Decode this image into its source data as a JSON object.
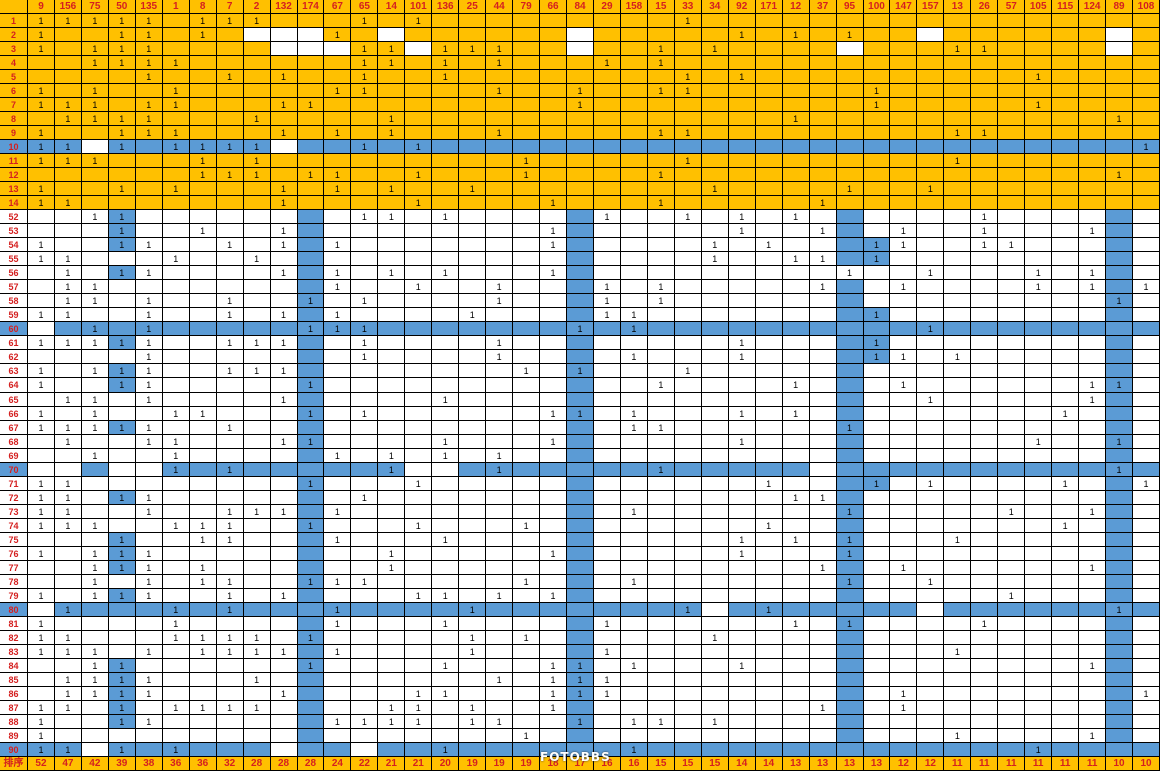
{
  "sheet": {
    "corner_label": "",
    "footer_label": "排序",
    "watermark": "FOTOBBS",
    "colors": {
      "orange": "#ffc000",
      "blue": "#5b9bd5",
      "white": "#ffffff",
      "header_text": "#d42020"
    },
    "columns": [
      "9",
      "156",
      "75",
      "50",
      "135",
      "1",
      "8",
      "7",
      "2",
      "132",
      "174",
      "67",
      "65",
      "14",
      "101",
      "136",
      "25",
      "44",
      "79",
      "66",
      "84",
      "29",
      "158",
      "15",
      "33",
      "34",
      "92",
      "171",
      "12",
      "37",
      "95",
      "100",
      "147",
      "157",
      "13",
      "26",
      "57",
      "105",
      "115",
      "124",
      "89",
      "108"
    ],
    "footer": [
      "52",
      "47",
      "42",
      "39",
      "38",
      "36",
      "36",
      "32",
      "28",
      "28",
      "28",
      "24",
      "22",
      "21",
      "21",
      "20",
      "19",
      "19",
      "19",
      "18",
      "17",
      "16",
      "16",
      "15",
      "15",
      "15",
      "14",
      "14",
      "13",
      "13",
      "13",
      "13",
      "12",
      "12",
      "11",
      "11",
      "11",
      "11",
      "11",
      "11",
      "10",
      "10"
    ],
    "rows": [
      {
        "label": "1",
        "fill": "orange",
        "ones": [
          0,
          1,
          2,
          3,
          4,
          6,
          7,
          8,
          12,
          14,
          24
        ]
      },
      {
        "label": "2",
        "fill": "orange",
        "ones": [
          0,
          3,
          4,
          6,
          11,
          26,
          28,
          30
        ],
        "white": [
          8,
          9,
          10,
          13,
          20,
          33,
          40
        ]
      },
      {
        "label": "3",
        "fill": "orange",
        "ones": [
          0,
          2,
          3,
          4,
          12,
          13,
          15,
          16,
          17,
          23,
          25,
          34,
          35
        ],
        "white": [
          9,
          10,
          11,
          14,
          20,
          30,
          40
        ]
      },
      {
        "label": "4",
        "fill": "orange",
        "ones": [
          2,
          3,
          4,
          5,
          12,
          13,
          15,
          17,
          21,
          23
        ]
      },
      {
        "label": "5",
        "fill": "orange",
        "ones": [
          4,
          7,
          9,
          12,
          15,
          24,
          26,
          37
        ]
      },
      {
        "label": "6",
        "fill": "orange",
        "ones": [
          0,
          2,
          5,
          11,
          12,
          17,
          20,
          23,
          24,
          31
        ]
      },
      {
        "label": "7",
        "fill": "orange",
        "ones": [
          0,
          1,
          2,
          4,
          5,
          9,
          10,
          20,
          31,
          37
        ]
      },
      {
        "label": "8",
        "fill": "orange",
        "ones": [
          1,
          2,
          3,
          4,
          8,
          13,
          28,
          40
        ]
      },
      {
        "label": "9",
        "fill": "orange",
        "ones": [
          0,
          3,
          4,
          5,
          9,
          11,
          13,
          17,
          23,
          24,
          34,
          35
        ]
      },
      {
        "label": "10",
        "fill": "blue",
        "ones": [
          0,
          1,
          3,
          5,
          6,
          7,
          8,
          12,
          14,
          41
        ],
        "white": [
          2,
          9
        ]
      },
      {
        "label": "11",
        "fill": "orange",
        "ones": [
          0,
          1,
          2,
          6,
          8,
          18,
          24,
          34
        ]
      },
      {
        "label": "12",
        "fill": "orange",
        "ones": [
          6,
          7,
          8,
          10,
          11,
          14,
          18,
          23,
          40
        ]
      },
      {
        "label": "13",
        "fill": "orange",
        "ones": [
          0,
          3,
          5,
          9,
          11,
          13,
          16,
          25,
          30,
          33
        ]
      },
      {
        "label": "14",
        "fill": "orange",
        "ones": [
          0,
          1,
          9,
          14,
          19,
          23,
          29
        ]
      },
      {
        "label": "52",
        "fill": "white",
        "ones": [
          2,
          3,
          12,
          13,
          15,
          21,
          24,
          26,
          28,
          35
        ],
        "blue": [
          3,
          10,
          20,
          30,
          40
        ]
      },
      {
        "label": "53",
        "fill": "white",
        "ones": [
          3,
          6,
          9,
          19,
          26,
          29,
          32,
          35,
          39
        ],
        "blue": [
          3,
          10,
          20,
          30,
          40
        ]
      },
      {
        "label": "54",
        "fill": "white",
        "ones": [
          0,
          3,
          4,
          7,
          9,
          11,
          19,
          25,
          27,
          31,
          32,
          35,
          36
        ],
        "blue": [
          3,
          10,
          20,
          30,
          31,
          40
        ]
      },
      {
        "label": "55",
        "fill": "white",
        "ones": [
          0,
          1,
          5,
          8,
          25,
          28,
          29,
          31
        ],
        "blue": [
          10,
          20,
          30,
          31,
          40
        ]
      },
      {
        "label": "56",
        "fill": "white",
        "ones": [
          1,
          3,
          4,
          9,
          11,
          13,
          15,
          19,
          30,
          33,
          37,
          39
        ],
        "blue": [
          3,
          10,
          20,
          40
        ]
      },
      {
        "label": "57",
        "fill": "white",
        "ones": [
          1,
          2,
          11,
          14,
          17,
          21,
          23,
          29,
          32,
          37,
          39,
          41
        ],
        "blue": [
          10,
          20,
          30,
          40
        ]
      },
      {
        "label": "58",
        "fill": "white",
        "ones": [
          1,
          2,
          4,
          7,
          10,
          12,
          17,
          21,
          23,
          40
        ],
        "blue": [
          10,
          20,
          30,
          40
        ]
      },
      {
        "label": "59",
        "fill": "white",
        "ones": [
          0,
          1,
          4,
          7,
          9,
          11,
          16,
          21,
          22,
          31
        ],
        "blue": [
          10,
          20,
          30,
          31,
          40
        ]
      },
      {
        "label": "60",
        "fill": "blue",
        "ones": [
          2,
          4,
          10,
          11,
          12,
          20,
          22,
          33
        ],
        "white": [
          0
        ]
      },
      {
        "label": "61",
        "fill": "white",
        "ones": [
          0,
          1,
          2,
          3,
          4,
          7,
          8,
          9,
          12,
          17,
          26,
          31
        ],
        "blue": [
          3,
          10,
          20,
          30,
          31,
          40
        ]
      },
      {
        "label": "62",
        "fill": "white",
        "ones": [
          4,
          12,
          17,
          22,
          26,
          31,
          32,
          34
        ],
        "blue": [
          10,
          20,
          30,
          31,
          40
        ]
      },
      {
        "label": "63",
        "fill": "white",
        "ones": [
          0,
          2,
          3,
          4,
          7,
          8,
          9,
          18,
          20,
          24
        ],
        "blue": [
          3,
          10,
          20,
          30,
          40
        ]
      },
      {
        "label": "64",
        "fill": "white",
        "ones": [
          0,
          3,
          4,
          10,
          23,
          28,
          32,
          39,
          40
        ],
        "blue": [
          3,
          10,
          20,
          30,
          40
        ]
      },
      {
        "label": "65",
        "fill": "white",
        "ones": [
          1,
          2,
          4,
          9,
          15,
          33,
          39
        ],
        "blue": [
          10,
          20,
          30,
          40
        ]
      },
      {
        "label": "66",
        "fill": "white",
        "ones": [
          0,
          2,
          5,
          6,
          10,
          12,
          19,
          20,
          22,
          26,
          28,
          38
        ],
        "blue": [
          10,
          20,
          30,
          40
        ]
      },
      {
        "label": "67",
        "fill": "white",
        "ones": [
          0,
          1,
          2,
          3,
          4,
          7,
          22,
          23,
          30
        ],
        "blue": [
          3,
          10,
          20,
          30,
          40
        ]
      },
      {
        "label": "68",
        "fill": "white",
        "ones": [
          1,
          4,
          5,
          9,
          10,
          15,
          19,
          26,
          37,
          40
        ],
        "blue": [
          10,
          20,
          30,
          40
        ]
      },
      {
        "label": "69",
        "fill": "white",
        "ones": [
          2,
          5,
          11,
          13,
          15,
          17
        ],
        "blue": [
          10,
          20,
          30,
          40
        ]
      },
      {
        "label": "70",
        "fill": "blue",
        "ones": [
          5,
          7,
          13,
          17,
          23,
          40
        ],
        "white": [
          0,
          1,
          3,
          4,
          14,
          15,
          29
        ]
      },
      {
        "label": "71",
        "fill": "white",
        "ones": [
          0,
          1,
          10,
          14,
          27,
          31,
          33,
          38,
          41
        ],
        "blue": [
          10,
          20,
          30,
          31,
          40
        ]
      },
      {
        "label": "72",
        "fill": "white",
        "ones": [
          0,
          1,
          3,
          4,
          12,
          28,
          29
        ],
        "blue": [
          3,
          10,
          20,
          30,
          40
        ]
      },
      {
        "label": "73",
        "fill": "white",
        "ones": [
          0,
          1,
          4,
          7,
          8,
          9,
          11,
          22,
          30,
          36,
          39
        ],
        "blue": [
          10,
          20,
          30,
          40
        ]
      },
      {
        "label": "74",
        "fill": "white",
        "ones": [
          0,
          1,
          2,
          5,
          6,
          7,
          10,
          14,
          18,
          27,
          38
        ],
        "blue": [
          10,
          20,
          30,
          40
        ]
      },
      {
        "label": "75",
        "fill": "white",
        "ones": [
          3,
          6,
          7,
          11,
          15,
          26,
          28,
          30,
          34
        ],
        "blue": [
          3,
          10,
          20,
          30,
          40
        ]
      },
      {
        "label": "76",
        "fill": "white",
        "ones": [
          0,
          2,
          3,
          4,
          13,
          19,
          26,
          30
        ],
        "blue": [
          3,
          10,
          20,
          30,
          40
        ]
      },
      {
        "label": "77",
        "fill": "white",
        "ones": [
          2,
          3,
          4,
          6,
          13,
          29,
          32,
          39
        ],
        "blue": [
          3,
          10,
          20,
          30,
          40
        ]
      },
      {
        "label": "78",
        "fill": "white",
        "ones": [
          2,
          4,
          6,
          7,
          10,
          11,
          12,
          18,
          22,
          30,
          33
        ],
        "blue": [
          10,
          20,
          30,
          40
        ]
      },
      {
        "label": "79",
        "fill": "white",
        "ones": [
          0,
          2,
          3,
          4,
          7,
          9,
          14,
          15,
          17,
          19,
          36
        ],
        "blue": [
          3,
          10,
          20,
          30,
          40
        ]
      },
      {
        "label": "80",
        "fill": "blue",
        "ones": [
          1,
          5,
          7,
          11,
          16,
          24,
          27,
          40
        ],
        "white": [
          0,
          25,
          33
        ]
      },
      {
        "label": "81",
        "fill": "white",
        "ones": [
          0,
          5,
          11,
          15,
          21,
          28,
          30,
          35
        ],
        "blue": [
          10,
          20,
          30,
          40
        ]
      },
      {
        "label": "82",
        "fill": "white",
        "ones": [
          0,
          1,
          5,
          6,
          7,
          8,
          10,
          16,
          18,
          25
        ],
        "blue": [
          10,
          20,
          30,
          40
        ]
      },
      {
        "label": "83",
        "fill": "white",
        "ones": [
          0,
          1,
          2,
          4,
          6,
          7,
          8,
          9,
          11,
          16,
          21,
          34
        ],
        "blue": [
          10,
          20,
          30,
          40
        ]
      },
      {
        "label": "84",
        "fill": "white",
        "ones": [
          2,
          3,
          10,
          15,
          19,
          20,
          22,
          26,
          39
        ],
        "blue": [
          3,
          10,
          20,
          30,
          40
        ]
      },
      {
        "label": "85",
        "fill": "white",
        "ones": [
          1,
          2,
          3,
          4,
          8,
          17,
          19,
          20,
          21
        ],
        "blue": [
          3,
          10,
          20,
          30,
          40
        ]
      },
      {
        "label": "86",
        "fill": "white",
        "ones": [
          1,
          2,
          3,
          4,
          9,
          14,
          15,
          19,
          20,
          21,
          32,
          41
        ],
        "blue": [
          3,
          10,
          20,
          30,
          40
        ]
      },
      {
        "label": "87",
        "fill": "white",
        "ones": [
          0,
          1,
          3,
          5,
          6,
          7,
          8,
          13,
          14,
          16,
          19,
          29,
          32
        ],
        "blue": [
          3,
          10,
          20,
          30,
          40
        ]
      },
      {
        "label": "88",
        "fill": "white",
        "ones": [
          0,
          3,
          4,
          11,
          12,
          13,
          14,
          16,
          17,
          20,
          22,
          23,
          25
        ],
        "blue": [
          3,
          10,
          20,
          30,
          40
        ]
      },
      {
        "label": "89",
        "fill": "white",
        "ones": [
          0,
          18,
          34,
          39
        ],
        "blue": [
          10,
          20,
          30,
          40
        ]
      },
      {
        "label": "90",
        "fill": "blue",
        "ones": [
          0,
          1,
          3,
          5,
          15,
          22,
          37
        ],
        "white": [
          2,
          9,
          12
        ]
      }
    ]
  }
}
